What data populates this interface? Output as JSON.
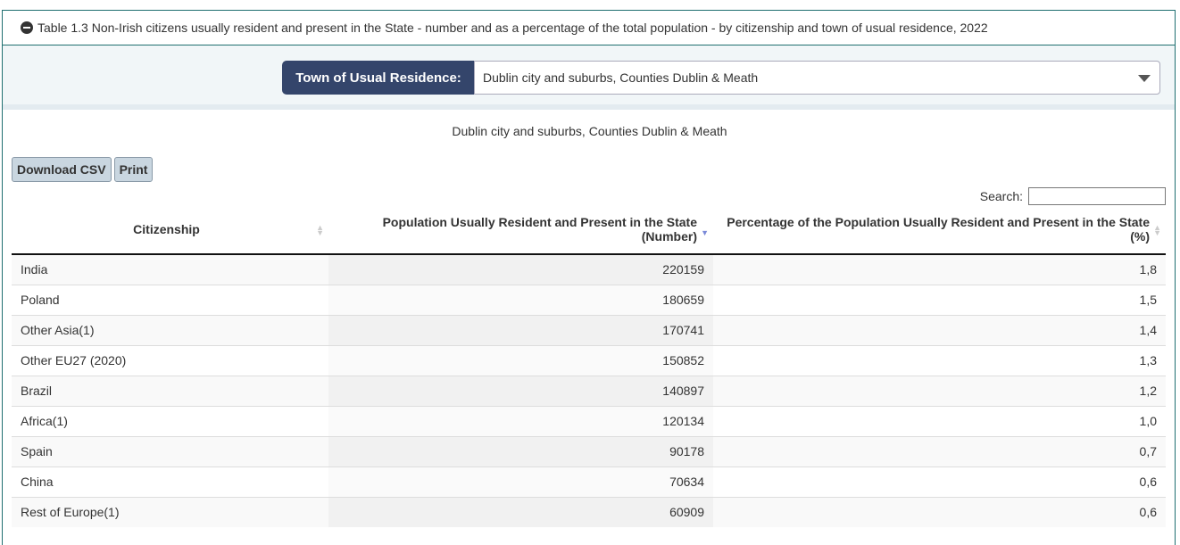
{
  "title": "Table 1.3 Non-Irish citizens usually resident and present in the State - number and as a percentage of the total population - by citizenship and town of usual residence, 2022",
  "filter": {
    "label": "Town of Usual Residence:",
    "selected": "Dublin city and suburbs, Counties Dublin & Meath"
  },
  "caption": "Dublin city and suburbs, Counties Dublin & Meath",
  "buttons": {
    "csv": "Download CSV",
    "print": "Print"
  },
  "search": {
    "label": "Search:",
    "value": ""
  },
  "columns": [
    "Citizenship",
    "Population Usually Resident and Present in the State (Number)",
    "Percentage of the Population Usually Resident and Present in the State (%)"
  ],
  "rows": [
    [
      "India",
      "220159",
      "1,8"
    ],
    [
      "Poland",
      "180659",
      "1,5"
    ],
    [
      "Other Asia(1)",
      "170741",
      "1,4"
    ],
    [
      "Other EU27 (2020)",
      "150852",
      "1,3"
    ],
    [
      "Brazil",
      "140897",
      "1,2"
    ],
    [
      "Africa(1)",
      "120134",
      "1,0"
    ],
    [
      "Spain",
      "90178",
      "0,7"
    ],
    [
      "China",
      "70634",
      "0,6"
    ],
    [
      "Rest of Europe(1)",
      "60909",
      "0,6"
    ]
  ]
}
